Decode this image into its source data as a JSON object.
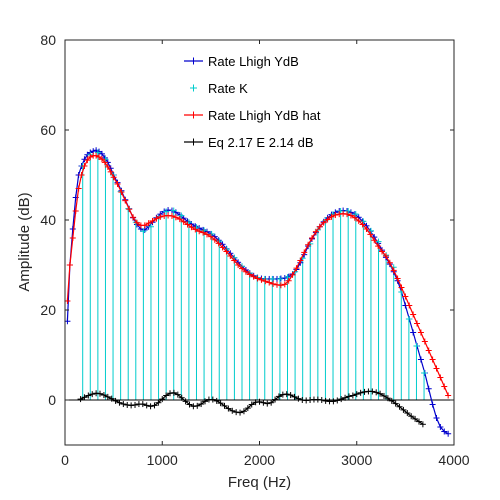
{
  "chart_data": {
    "type": "line",
    "xlabel": "Freq (Hz)",
    "ylabel": "Amplitude (dB)",
    "xlim": [
      0,
      4000
    ],
    "ylim": [
      -10,
      80
    ],
    "xticks": [
      "0",
      "1000",
      "2000",
      "3000",
      "4000"
    ],
    "yticks": [
      "0",
      "20",
      "40",
      "60",
      "80"
    ],
    "legend_position": "top-right",
    "grid": false,
    "series": [
      {
        "name": "Rate Lhigh YdB",
        "color": "#0000cc",
        "marker": "+",
        "x": [
          25,
          50,
          80,
          110,
          140,
          170,
          200,
          230,
          260,
          290,
          320,
          350,
          380,
          410,
          440,
          470,
          500,
          540,
          580,
          620,
          660,
          700,
          740,
          780,
          820,
          860,
          900,
          940,
          980,
          1020,
          1060,
          1100,
          1140,
          1180,
          1220,
          1260,
          1300,
          1340,
          1380,
          1420,
          1460,
          1500,
          1540,
          1580,
          1620,
          1660,
          1700,
          1740,
          1780,
          1820,
          1860,
          1900,
          1940,
          1980,
          2020,
          2060,
          2100,
          2140,
          2180,
          2220,
          2260,
          2300,
          2340,
          2380,
          2420,
          2460,
          2500,
          2540,
          2580,
          2620,
          2660,
          2700,
          2740,
          2780,
          2820,
          2860,
          2900,
          2940,
          2980,
          3020,
          3060,
          3100,
          3140,
          3180,
          3220,
          3260,
          3300,
          3340,
          3380,
          3420,
          3460,
          3500,
          3540,
          3580,
          3620,
          3660,
          3700,
          3740,
          3780,
          3820,
          3860,
          3900,
          3940
        ],
        "y": [
          17.5,
          30,
          38,
          45,
          50,
          52,
          53.5,
          54.5,
          55,
          55.3,
          55.5,
          55.2,
          54.7,
          53.8,
          52.8,
          51.5,
          50,
          48.3,
          46.5,
          44.5,
          42.5,
          40.5,
          39,
          38,
          37.8,
          38.5,
          39.5,
          40.5,
          41.3,
          41.9,
          42.2,
          42.1,
          41.7,
          41.1,
          40.4,
          39.7,
          39.1,
          38.6,
          38.2,
          37.8,
          37.4,
          36.9,
          36.3,
          35.5,
          34.6,
          33.6,
          32.6,
          31.6,
          30.6,
          29.7,
          28.9,
          28.2,
          27.6,
          27.2,
          27,
          26.9,
          26.9,
          26.9,
          26.9,
          27,
          27.1,
          27.4,
          28,
          29,
          30.5,
          32.3,
          34.2,
          35.8,
          37.2,
          38.5,
          39.6,
          40.5,
          41.2,
          41.7,
          42,
          42.1,
          42,
          41.7,
          41.3,
          40.6,
          39.7,
          38.7,
          37.5,
          36.2,
          34.8,
          33.3,
          31.7,
          30.2,
          28.5,
          26.5,
          24,
          21,
          18,
          15,
          12,
          9,
          6,
          2.5,
          -1,
          -4,
          -6,
          -7,
          -7.5
        ]
      },
      {
        "name": "Rate K",
        "color": "#00cccc",
        "marker": "+",
        "x": [
          182,
          260,
          338,
          416,
          494,
          572,
          650,
          728,
          806,
          884,
          962,
          1040,
          1118,
          1196,
          1274,
          1352,
          1430,
          1508,
          1586,
          1664,
          1742,
          1820,
          1898,
          1976,
          2054,
          2132,
          2210,
          2288,
          2366,
          2444,
          2522,
          2600,
          2678,
          2756,
          2834,
          2912,
          2990,
          3068,
          3146,
          3224,
          3302,
          3380,
          3458,
          3536,
          3614,
          3692
        ],
        "y": [
          52,
          54.5,
          55,
          53.5,
          50,
          46.3,
          42.5,
          39.5,
          37.5,
          38.5,
          40.5,
          41.9,
          42.1,
          41,
          39.5,
          38.4,
          37.7,
          36.9,
          35.3,
          33.5,
          31.6,
          29.7,
          28.2,
          27.2,
          26.9,
          26.9,
          26.9,
          27.3,
          28.5,
          31.5,
          34.7,
          37.8,
          39.9,
          41.3,
          42,
          42,
          41.3,
          39.7,
          37.6,
          35.2,
          32.2,
          29.5,
          24,
          18,
          12,
          6
        ],
        "stems": true
      },
      {
        "name": "Rate Lhigh YdB hat",
        "color": "#ff0000",
        "marker": "+",
        "x": [
          25,
          50,
          80,
          110,
          140,
          170,
          200,
          230,
          260,
          290,
          320,
          350,
          380,
          410,
          440,
          470,
          500,
          540,
          580,
          620,
          660,
          700,
          740,
          780,
          820,
          860,
          900,
          940,
          980,
          1020,
          1060,
          1100,
          1140,
          1180,
          1220,
          1260,
          1300,
          1340,
          1380,
          1420,
          1460,
          1500,
          1540,
          1580,
          1620,
          1660,
          1700,
          1740,
          1780,
          1820,
          1860,
          1900,
          1940,
          1980,
          2020,
          2060,
          2100,
          2140,
          2180,
          2220,
          2260,
          2300,
          2340,
          2380,
          2420,
          2460,
          2500,
          2540,
          2580,
          2620,
          2660,
          2700,
          2740,
          2780,
          2820,
          2860,
          2900,
          2940,
          2980,
          3020,
          3060,
          3100,
          3140,
          3180,
          3220,
          3260,
          3300,
          3340,
          3380,
          3420,
          3460,
          3500,
          3540,
          3580,
          3620,
          3660,
          3700,
          3740,
          3780,
          3820,
          3860,
          3900,
          3940
        ],
        "y": [
          22,
          30,
          36,
          42,
          47,
          50,
          52,
          53.3,
          54,
          54.3,
          54.3,
          54,
          53.5,
          52.8,
          51.8,
          50.7,
          49.5,
          48,
          46.2,
          44.3,
          42.4,
          40.6,
          39.4,
          38.8,
          38.8,
          39.3,
          39.8,
          40.3,
          40.7,
          40.9,
          41,
          40.9,
          40.6,
          40.2,
          39.6,
          39,
          38.4,
          37.9,
          37.5,
          37.2,
          36.8,
          36.3,
          35.6,
          34.8,
          33.9,
          33,
          32,
          31,
          30,
          29.2,
          28.5,
          27.9,
          27.4,
          27,
          26.7,
          26.4,
          26.1,
          25.8,
          25.6,
          25.5,
          25.7,
          26.5,
          27.8,
          29.3,
          31,
          32.8,
          34.5,
          36,
          37.4,
          38.5,
          39.4,
          40.1,
          40.7,
          41.1,
          41.3,
          41.4,
          41.3,
          41,
          40.5,
          39.8,
          39,
          38,
          36.8,
          35.5,
          34.2,
          33,
          32,
          30.5,
          28.8,
          27,
          25,
          23,
          21,
          19,
          17,
          15,
          13,
          11,
          9,
          7,
          5,
          3,
          1
        ]
      },
      {
        "name": "Eq 2.17 E 2.14 dB",
        "color": "#000000",
        "marker": "+",
        "x": [
          160,
          200,
          240,
          280,
          320,
          360,
          400,
          440,
          480,
          520,
          560,
          600,
          640,
          680,
          720,
          760,
          800,
          840,
          880,
          920,
          960,
          1000,
          1040,
          1080,
          1120,
          1160,
          1200,
          1240,
          1280,
          1320,
          1360,
          1400,
          1440,
          1480,
          1520,
          1560,
          1600,
          1640,
          1680,
          1720,
          1760,
          1800,
          1840,
          1880,
          1920,
          1960,
          2000,
          2040,
          2080,
          2120,
          2160,
          2200,
          2240,
          2280,
          2320,
          2360,
          2400,
          2440,
          2480,
          2520,
          2560,
          2600,
          2640,
          2680,
          2720,
          2760,
          2800,
          2840,
          2880,
          2920,
          2960,
          3000,
          3040,
          3080,
          3120,
          3160,
          3200,
          3240,
          3280,
          3320,
          3360,
          3400,
          3440,
          3480,
          3520,
          3560,
          3600,
          3640,
          3680
        ],
        "y": [
          0.2,
          0.6,
          1,
          1.3,
          1.5,
          1.4,
          1.1,
          0.7,
          0.3,
          -0.2,
          -0.6,
          -0.9,
          -1.1,
          -1.2,
          -1.1,
          -0.9,
          -0.9,
          -1.2,
          -1.4,
          -1.2,
          -0.6,
          0.2,
          1,
          1.5,
          1.6,
          1.2,
          0.5,
          -0.3,
          -1,
          -1.4,
          -1.3,
          -0.9,
          -0.3,
          0.1,
          0.1,
          -0.2,
          -0.7,
          -1.3,
          -1.9,
          -2.4,
          -2.7,
          -2.8,
          -2.5,
          -1.8,
          -1,
          -0.5,
          -0.4,
          -0.6,
          -0.8,
          -0.6,
          0.1,
          0.8,
          1.2,
          1.3,
          1.1,
          0.7,
          0.3,
          0,
          -0.1,
          0,
          0.1,
          0.1,
          0,
          -0.2,
          -0.3,
          -0.3,
          -0.1,
          0.2,
          0.5,
          0.8,
          1,
          1.3,
          1.6,
          1.8,
          1.9,
          1.9,
          1.7,
          1.4,
          0.9,
          0.4,
          -0.2,
          -0.8,
          -1.5,
          -2.2,
          -2.9,
          -3.6,
          -4.2,
          -4.8,
          -5.4
        ]
      }
    ]
  }
}
